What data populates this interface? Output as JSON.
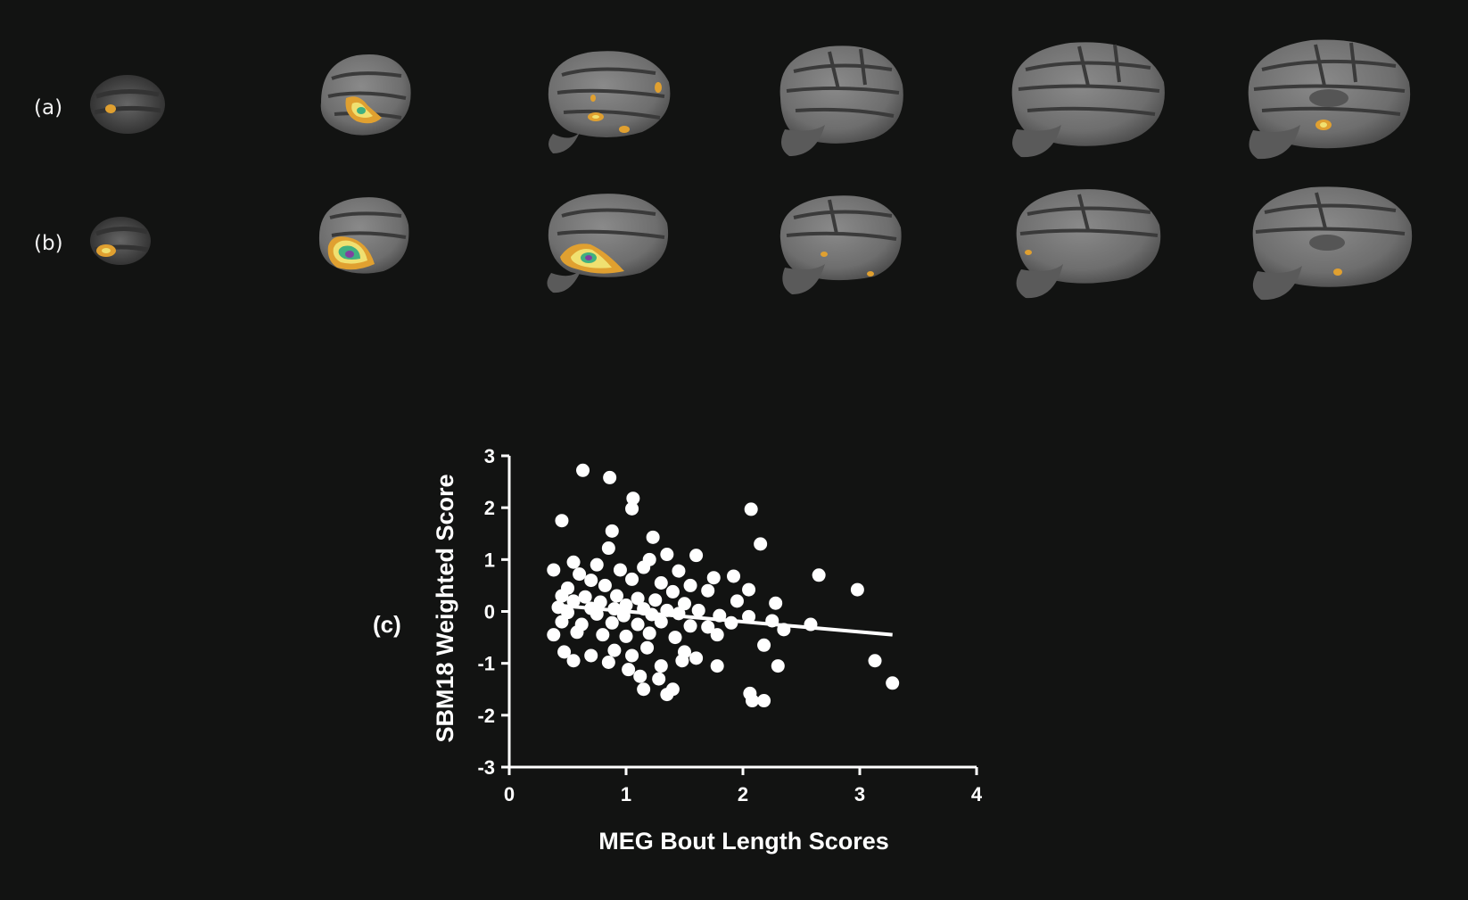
{
  "panels": {
    "a_label": "(a)",
    "b_label": "(b)",
    "c_label": "(c)"
  },
  "brain_rows": [
    {
      "label": "(a)",
      "slices": 6
    },
    {
      "label": "(b)",
      "slices": 6
    }
  ],
  "colors": {
    "background": "#121312",
    "cortex": "#7c7c7c",
    "sulcus": "#3a3a3a",
    "activation_outer": "#e0a030",
    "activation_mid": "#f0e070",
    "activation_inner": "#40b080",
    "activation_core": "#8040a0",
    "points": "#ffffff"
  },
  "chart_data": {
    "type": "scatter",
    "title": "",
    "xlabel": "MEG Bout Length Scores",
    "ylabel": "SBM18 Weighted Score",
    "xlim": [
      0,
      4
    ],
    "ylim": [
      -3,
      3
    ],
    "xticks": [
      "0",
      "1",
      "2",
      "3",
      "4"
    ],
    "yticks": [
      "3",
      "2",
      "1",
      "0",
      "-1",
      "-2",
      "-3"
    ],
    "grid": false,
    "trendline": {
      "x": [
        0.4,
        3.28
      ],
      "y": [
        0.12,
        -0.45
      ]
    },
    "points": [
      [
        0.63,
        2.72
      ],
      [
        0.86,
        2.58
      ],
      [
        1.06,
        2.18
      ],
      [
        1.05,
        1.98
      ],
      [
        0.45,
        1.75
      ],
      [
        2.07,
        1.97
      ],
      [
        2.15,
        1.3
      ],
      [
        0.88,
        1.55
      ],
      [
        1.23,
        1.43
      ],
      [
        0.85,
        1.22
      ],
      [
        1.6,
        1.08
      ],
      [
        1.35,
        1.1
      ],
      [
        1.2,
        1.0
      ],
      [
        0.55,
        0.95
      ],
      [
        0.75,
        0.9
      ],
      [
        1.15,
        0.85
      ],
      [
        0.95,
        0.8
      ],
      [
        1.45,
        0.78
      ],
      [
        0.38,
        0.8
      ],
      [
        2.65,
        0.7
      ],
      [
        1.92,
        0.68
      ],
      [
        1.75,
        0.65
      ],
      [
        0.6,
        0.72
      ],
      [
        0.7,
        0.6
      ],
      [
        1.05,
        0.62
      ],
      [
        1.3,
        0.55
      ],
      [
        1.55,
        0.5
      ],
      [
        0.5,
        0.45
      ],
      [
        0.82,
        0.5
      ],
      [
        2.05,
        0.42
      ],
      [
        2.98,
        0.42
      ],
      [
        1.7,
        0.4
      ],
      [
        1.4,
        0.38
      ],
      [
        0.45,
        0.3
      ],
      [
        0.65,
        0.28
      ],
      [
        0.92,
        0.3
      ],
      [
        1.1,
        0.25
      ],
      [
        1.25,
        0.22
      ],
      [
        0.55,
        0.2
      ],
      [
        0.78,
        0.18
      ],
      [
        1.0,
        0.12
      ],
      [
        1.5,
        0.15
      ],
      [
        1.95,
        0.2
      ],
      [
        2.28,
        0.16
      ],
      [
        0.42,
        0.08
      ],
      [
        0.7,
        0.06
      ],
      [
        0.9,
        0.05
      ],
      [
        1.15,
        0.05
      ],
      [
        1.35,
        0.02
      ],
      [
        1.62,
        0.02
      ],
      [
        0.5,
        -0.02
      ],
      [
        0.75,
        -0.05
      ],
      [
        0.98,
        -0.08
      ],
      [
        1.22,
        -0.06
      ],
      [
        1.45,
        -0.04
      ],
      [
        1.8,
        -0.08
      ],
      [
        2.05,
        -0.1
      ],
      [
        2.25,
        -0.18
      ],
      [
        2.58,
        -0.25
      ],
      [
        0.45,
        -0.2
      ],
      [
        0.62,
        -0.25
      ],
      [
        0.88,
        -0.22
      ],
      [
        1.1,
        -0.25
      ],
      [
        1.3,
        -0.2
      ],
      [
        1.55,
        -0.28
      ],
      [
        1.7,
        -0.3
      ],
      [
        1.9,
        -0.22
      ],
      [
        2.35,
        -0.35
      ],
      [
        0.38,
        -0.45
      ],
      [
        0.58,
        -0.4
      ],
      [
        0.8,
        -0.45
      ],
      [
        1.0,
        -0.48
      ],
      [
        1.2,
        -0.42
      ],
      [
        1.42,
        -0.5
      ],
      [
        1.78,
        -0.45
      ],
      [
        0.47,
        -0.78
      ],
      [
        0.7,
        -0.85
      ],
      [
        0.9,
        -0.75
      ],
      [
        1.05,
        -0.85
      ],
      [
        1.18,
        -0.7
      ],
      [
        1.5,
        -0.78
      ],
      [
        0.55,
        -0.95
      ],
      [
        0.85,
        -0.98
      ],
      [
        1.02,
        -1.12
      ],
      [
        1.3,
        -1.05
      ],
      [
        1.48,
        -0.95
      ],
      [
        1.78,
        -1.05
      ],
      [
        2.18,
        -0.65
      ],
      [
        2.3,
        -1.05
      ],
      [
        3.13,
        -0.95
      ],
      [
        1.12,
        -1.25
      ],
      [
        1.28,
        -1.3
      ],
      [
        1.4,
        -1.5
      ],
      [
        1.35,
        -1.6
      ],
      [
        1.15,
        -1.5
      ],
      [
        2.06,
        -1.58
      ],
      [
        2.08,
        -1.72
      ],
      [
        2.18,
        -1.72
      ],
      [
        3.28,
        -1.38
      ],
      [
        1.6,
        -0.9
      ]
    ]
  }
}
